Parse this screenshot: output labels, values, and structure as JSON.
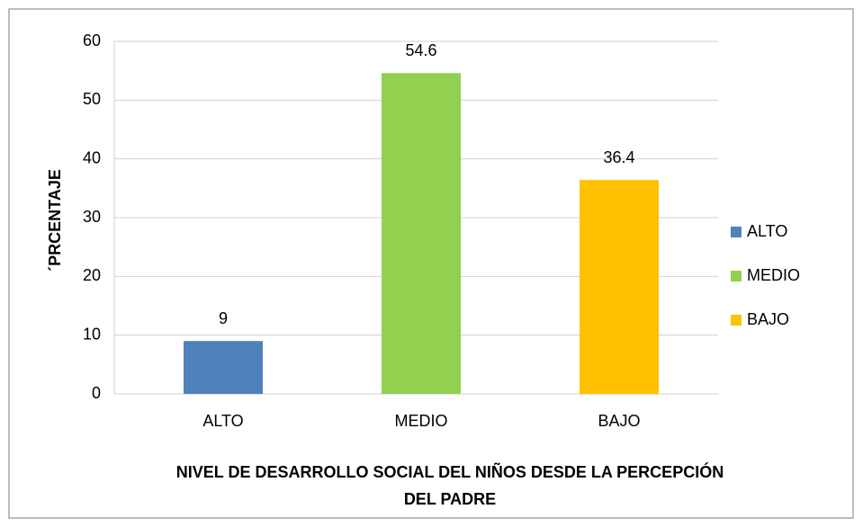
{
  "chart_data": {
    "type": "bar",
    "ylabel": "´PRCENTAJE",
    "xlabel": [
      "NIVEL DE DESARROLLO SOCIAL DEL NIÑOS DESDE LA PERCEPCIÓN",
      "DEL PADRE"
    ],
    "categories": [
      "ALTO",
      "MEDIO",
      "BAJO"
    ],
    "values": [
      9,
      54.6,
      36.4
    ],
    "colors": [
      "#4f81bd",
      "#92d050",
      "#ffc000"
    ],
    "ylim": [
      0,
      60
    ],
    "yticks": [
      0,
      10,
      20,
      30,
      40,
      50,
      60
    ],
    "grid": true,
    "legend": "right"
  }
}
